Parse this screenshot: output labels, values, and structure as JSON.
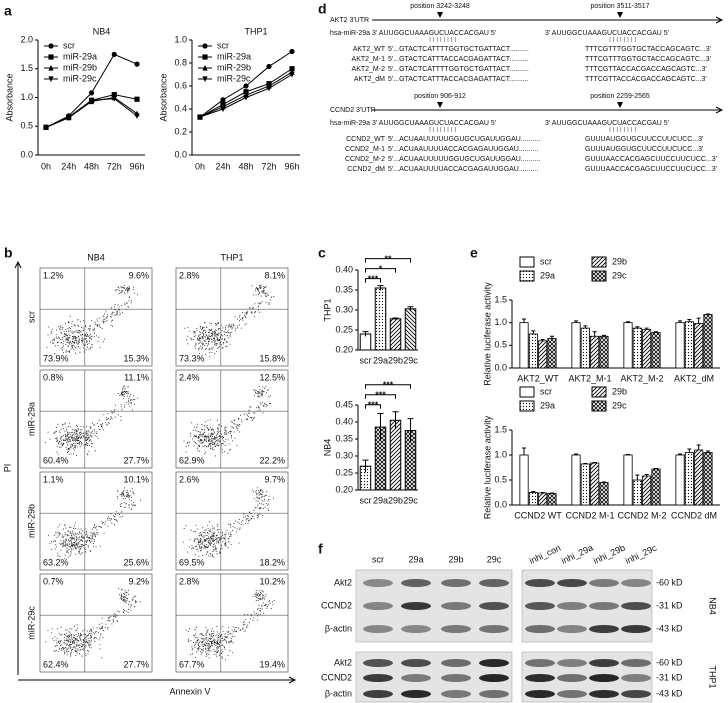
{
  "panel_labels": [
    "a",
    "b",
    "c",
    "d",
    "e",
    "f"
  ],
  "chart_data": [
    {
      "type": "line",
      "title": "NB4",
      "y_label": "Absorbance",
      "categories": [
        "0h",
        "24h",
        "48h",
        "72h",
        "96h"
      ],
      "ylim": [
        0,
        2
      ],
      "yticks": [
        {
          "value": 0,
          "label": "0.0"
        },
        0.5,
        {
          "value": 1,
          "label": "1.0"
        },
        1.5,
        {
          "value": 2,
          "label": "2.0"
        }
      ],
      "legend": "upper left",
      "series": [
        {
          "name": "scr",
          "color": "#000000",
          "marker": "circle",
          "values": [
            0.48,
            0.68,
            1.08,
            1.75,
            1.58
          ]
        },
        {
          "name": "miR-29a",
          "color": "#000000",
          "marker": "square",
          "values": [
            0.48,
            0.66,
            0.95,
            1.05,
            0.97
          ]
        },
        {
          "name": "miR-29b",
          "color": "#000000",
          "marker": "triangle",
          "values": [
            0.48,
            0.65,
            0.93,
            1.0,
            0.72
          ]
        },
        {
          "name": "miR-29c",
          "color": "#000000",
          "marker": "triangle-down",
          "values": [
            0.48,
            0.65,
            0.95,
            0.98,
            0.68
          ]
        }
      ]
    },
    {
      "type": "line",
      "title": "THP1",
      "y_label": "Absorbance",
      "categories": [
        "0h",
        "24h",
        "48h",
        "72h",
        "96h"
      ],
      "ylim": [
        0,
        1
      ],
      "yticks": [
        {
          "value": 0,
          "label": "0.0"
        },
        0.2,
        0.4,
        0.6,
        0.8,
        {
          "value": 1,
          "label": "1.0"
        }
      ],
      "legend": "upper left",
      "series": [
        {
          "name": "scr",
          "color": "#000000",
          "marker": "circle",
          "values": [
            0.33,
            0.48,
            0.6,
            0.77,
            0.9
          ]
        },
        {
          "name": "miR-29a",
          "color": "#000000",
          "marker": "square",
          "values": [
            0.33,
            0.44,
            0.55,
            0.62,
            0.75
          ]
        },
        {
          "name": "miR-29b",
          "color": "#000000",
          "marker": "triangle",
          "values": [
            0.33,
            0.42,
            0.52,
            0.6,
            0.72
          ]
        },
        {
          "name": "miR-29c",
          "color": "#000000",
          "marker": "triangle-down",
          "values": [
            0.33,
            0.4,
            0.5,
            0.58,
            0.7
          ]
        }
      ]
    },
    {
      "type": "bar",
      "y_label": "THP1",
      "categories": [
        "scr",
        "29a",
        "29b",
        "29c"
      ],
      "values": [
        0.24,
        0.355,
        0.278,
        0.303
      ],
      "errors": [
        0.006,
        0.006,
        0.002,
        0.005
      ],
      "patterns": [
        "none",
        "dots",
        "hatch",
        "backhatch"
      ],
      "ylim": [
        0.2,
        0.4
      ],
      "yticks": [
        {
          "value": 0.2,
          "label": "0.20"
        },
        0.25,
        {
          "value": 0.3,
          "label": "0.30"
        },
        0.35,
        {
          "value": 0.4,
          "label": "0.40"
        }
      ],
      "significance": [
        {
          "label": "***",
          "pair": [
            "scr",
            "29a"
          ]
        },
        {
          "label": "*",
          "pair": [
            "scr",
            "29b"
          ]
        },
        {
          "label": "**",
          "pair": [
            "scr",
            "29c"
          ]
        }
      ]
    },
    {
      "type": "bar",
      "y_label": "NB4",
      "categories": [
        "scr",
        "29a",
        "29b",
        "29c"
      ],
      "values": [
        0.27,
        0.385,
        0.405,
        0.375
      ],
      "errors": [
        0.018,
        0.04,
        0.025,
        0.035
      ],
      "patterns": [
        "dots",
        "crosshatch",
        "hatch",
        "crosshatch"
      ],
      "ylim": [
        0.2,
        0.45
      ],
      "yticks": [
        {
          "value": 0.2,
          "label": "0.20"
        },
        0.25,
        {
          "value": 0.3,
          "label": "0.30"
        },
        0.35,
        {
          "value": 0.4,
          "label": "0.40"
        },
        0.45
      ],
      "significance": [
        {
          "label": "***",
          "pair": [
            "scr",
            "29a"
          ]
        },
        {
          "label": "***",
          "pair": [
            "scr",
            "29b"
          ]
        },
        {
          "label": "***",
          "pair": [
            "scr",
            "29c"
          ]
        }
      ]
    },
    {
      "type": "grouped-bar",
      "y_label": "Relative luciferase activity",
      "categories": [
        "AKT2_WT",
        "AKT2_M-1",
        "AKT2_M-2",
        "AKT2_dM"
      ],
      "ylim": [
        0,
        1.5
      ],
      "yticks": [
        {
          "value": 0,
          "label": "0.0"
        },
        0.5,
        {
          "value": 1,
          "label": "1.0"
        },
        1.5
      ],
      "legend": "top",
      "series": [
        {
          "name": "scr",
          "pattern": "none",
          "values": [
            1.0,
            1.0,
            1.0,
            1.0
          ],
          "errors": [
            0.08,
            0.04,
            0.02,
            0.04
          ]
        },
        {
          "name": "29a",
          "pattern": "dots",
          "values": [
            0.75,
            0.88,
            0.88,
            1.02
          ],
          "errors": [
            0.07,
            0.05,
            0.03,
            0.05
          ]
        },
        {
          "name": "29b",
          "pattern": "hatch",
          "values": [
            0.6,
            0.7,
            0.85,
            0.98
          ],
          "errors": [
            0.03,
            0.1,
            0.03,
            0.12
          ]
        },
        {
          "name": "29c",
          "pattern": "crosshatch",
          "values": [
            0.65,
            0.7,
            0.78,
            1.18
          ],
          "errors": [
            0.05,
            0.02,
            0.02,
            0.01
          ]
        }
      ]
    },
    {
      "type": "grouped-bar",
      "y_label": "Relative luciferase activity",
      "categories": [
        "CCND2 WT",
        "CCND2 M-1",
        "CCND2 M-2",
        "CCND2 dM"
      ],
      "ylim": [
        0,
        1.5
      ],
      "yticks": [
        {
          "value": 0,
          "label": "0.0"
        },
        0.5,
        {
          "value": 1,
          "label": "1.0"
        },
        1.5
      ],
      "legend": "top",
      "series": [
        {
          "name": "scr",
          "pattern": "none",
          "values": [
            1.0,
            1.0,
            1.0,
            1.0
          ],
          "errors": [
            0.14,
            0.02,
            0.01,
            0.02
          ]
        },
        {
          "name": "29a",
          "pattern": "dots",
          "values": [
            0.25,
            0.82,
            0.5,
            1.05
          ],
          "errors": [
            0.02,
            0.01,
            0.1,
            0.07
          ]
        },
        {
          "name": "29b",
          "pattern": "hatch",
          "values": [
            0.24,
            0.84,
            0.58,
            1.1
          ],
          "errors": [
            0.01,
            0.01,
            0.03,
            0.1
          ]
        },
        {
          "name": "29c",
          "pattern": "crosshatch",
          "values": [
            0.23,
            0.45,
            0.72,
            1.05
          ],
          "errors": [
            0.01,
            0.01,
            0.01,
            0.03
          ]
        }
      ]
    }
  ],
  "flow": {
    "columns": [
      "NB4",
      "THP1"
    ],
    "rows": [
      "scr",
      "miR-29a",
      "miR-29b",
      "miR-29c"
    ],
    "y_label": "PI",
    "x_label": "Annexin V",
    "quadrants": [
      [
        [
          "1.2%",
          "9.6%",
          "73.9%",
          "15.3%"
        ],
        [
          "2.8%",
          "8.1%",
          "73.3%",
          "15.8%"
        ]
      ],
      [
        [
          "0.8%",
          "11.1%",
          "60.4%",
          "27.7%"
        ],
        [
          "2.4%",
          "12.5%",
          "62.9%",
          "22.2%"
        ]
      ],
      [
        [
          "1.1%",
          "10.1%",
          "63.2%",
          "25.6%"
        ],
        [
          "2.6%",
          "9.7%",
          "69.5%",
          "18.2%"
        ]
      ],
      [
        [
          "0.7%",
          "9.2%",
          "62.4%",
          "27.7%"
        ],
        [
          "2.8%",
          "10.2%",
          "67.7%",
          "19.4%"
        ]
      ]
    ]
  },
  "sequences": {
    "akt2": {
      "title": "AKT2 3'UTR",
      "positions": [
        "position 3242-3248",
        "position 3511-3517"
      ],
      "mirna": [
        "hsa-miR-29a 3' AUUGGCUAAAGUCUACCACGAU 5'",
        "3' AUUGGCUAAAGUCUACCACGAU 5'"
      ],
      "rows": [
        {
          "label": "AKT2_WT",
          "left": "5'...GTACTCATTTTGGTGCTGATTACT..........",
          "right": "TTTCGTTTGGTGCTACCAGCAGTC...3'"
        },
        {
          "label": "AKT2_M-1",
          "left": "5'...GTACTCATTTACCACGAGATTACT..........",
          "right": "TTTCGTTTGGTGCTACCAGCAGTC...3'"
        },
        {
          "label": "AKT2_M-2",
          "left": "5'...GTACTCATTTTGGTGCTGATTACT..........",
          "right": "TTTCGTTACCACGACCAGCAGTC...3'"
        },
        {
          "label": "AKT2_dM",
          "left": "5'...GTACTCATTTACCACGAGATTACT..........",
          "right": "TTTCGTTACCACGACCAGCAGTC...3'"
        }
      ]
    },
    "ccnd2": {
      "title": "CCND2 3'UTR",
      "positions": [
        "position 906-912",
        "position 2259-2565"
      ],
      "mirna": [
        "hsa-miR-29a 3' AUUGGCUAAAGUCUACCACGAU 5'",
        "3' AUUGGCUAAAGUCUACCACGAU 5'"
      ],
      "rows": [
        {
          "label": "CCND2_WT",
          "left": "5'...ACUAAUUUUUGGUGCUGAUUGGAU..........",
          "right": "GUUUAUGGUGCUUCCUUCUCC...3'"
        },
        {
          "label": "CCND2_M-1",
          "left": "5'...ACUAAUUUUACCACGAGAUUGGAU..........",
          "right": "GUUUAUGGUGCUUCCUUCUCC...3'"
        },
        {
          "label": "CCND2_M-2",
          "left": "5'...ACUAAUUUUUGGUGCUGAUUGGAU..........",
          "right": "GUUUAACCACGAGCUUCCUUCUCC...3'"
        },
        {
          "label": "CCND2_dM",
          "left": "5'...ACUAAUUUUACCACGAGAUUGGAU..........",
          "right": "GUUUAACCACGAGCUUCCUUCUCC...3'"
        }
      ]
    }
  },
  "blot": {
    "lanes_left": [
      "scr",
      "29a",
      "29b",
      "29c"
    ],
    "lanes_right": [
      "inhi_con",
      "inhi_29a",
      "inhi_29b",
      "inhi_29c"
    ],
    "proteins": [
      "Akt2",
      "CCND2",
      "β-actin"
    ],
    "sizes": [
      "-60 kD",
      "-31 kD",
      "-43 kD"
    ],
    "cells": [
      "NB4",
      "THP1"
    ]
  }
}
